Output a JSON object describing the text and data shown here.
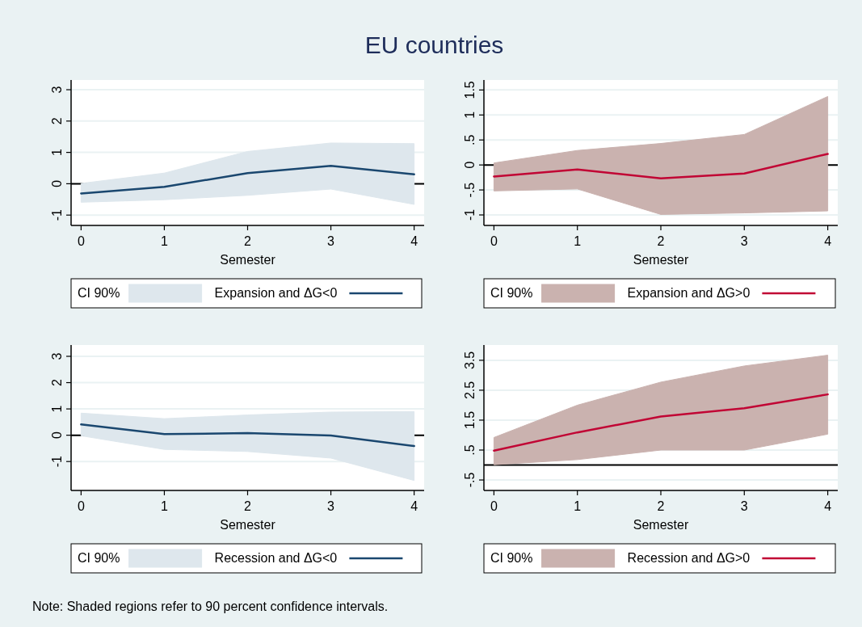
{
  "chart_data": [
    {
      "type": "line",
      "title": "EU countries",
      "xlabel": "Semester",
      "legend_title": "CI 90%",
      "x": [
        0,
        1,
        2,
        3,
        4
      ],
      "xlim": [
        -0.12,
        4.12
      ],
      "xticks": [
        0,
        1,
        2,
        3,
        4
      ],
      "ylim": [
        -1.33,
        3.31
      ],
      "yticks": [
        -1,
        0,
        1,
        2,
        3
      ],
      "grid": "y",
      "legend": "bottom",
      "ref_lines": [
        {
          "axis": "y",
          "value": 0,
          "color": "#000000"
        }
      ],
      "series": [
        {
          "name": "Expansion and ΔG<0",
          "color": "#1a476f",
          "values": [
            -0.31,
            -0.1,
            0.34,
            0.57,
            0.3
          ],
          "lower": [
            -0.59,
            -0.51,
            -0.37,
            -0.17,
            -0.66
          ],
          "upper": [
            0.01,
            0.34,
            1.03,
            1.3,
            1.28
          ]
        }
      ]
    },
    {
      "type": "line",
      "xlabel": "Semester",
      "legend_title": "CI 90%",
      "x": [
        0,
        1,
        2,
        3,
        4
      ],
      "xlim": [
        -0.12,
        4.12
      ],
      "xticks": [
        0,
        1,
        2,
        3,
        4
      ],
      "ylim": [
        -1.21,
        1.7
      ],
      "yticks": [
        {
          "value": -1,
          "label": "-1"
        },
        {
          "value": -0.5,
          "label": "-.5"
        },
        0,
        {
          "value": 0.5,
          "label": ".5"
        },
        1,
        1.5
      ],
      "grid": "y",
      "legend": "bottom",
      "ref_lines": [
        {
          "axis": "y",
          "value": 0,
          "color": "#000000"
        }
      ],
      "series": [
        {
          "name": "Expansion and ΔG>0",
          "color": "#c10534",
          "values": [
            -0.23,
            -0.09,
            -0.27,
            -0.17,
            0.22
          ],
          "lower": [
            -0.52,
            -0.48,
            -0.99,
            -0.96,
            -0.92
          ],
          "upper": [
            0.04,
            0.29,
            0.43,
            0.61,
            1.37
          ]
        }
      ]
    },
    {
      "type": "line",
      "xlabel": "Semester",
      "legend_title": "CI 90%",
      "x": [
        0,
        1,
        2,
        3,
        4
      ],
      "xlim": [
        -0.12,
        4.12
      ],
      "xticks": [
        0,
        1,
        2,
        3,
        4
      ],
      "ylim": [
        -2.1,
        3.43
      ],
      "yticks": [
        -1,
        0,
        1,
        2,
        3
      ],
      "grid": "y",
      "legend": "bottom",
      "ref_lines": [
        {
          "axis": "y",
          "value": 0,
          "color": "#000000"
        }
      ],
      "series": [
        {
          "name": "Recession and ΔG<0",
          "color": "#1a476f",
          "values": [
            0.41,
            0.04,
            0.08,
            -0.01,
            -0.41
          ],
          "lower": [
            -0.02,
            -0.54,
            -0.62,
            -0.87,
            -1.72
          ],
          "upper": [
            0.84,
            0.63,
            0.77,
            0.88,
            0.9
          ]
        }
      ]
    },
    {
      "type": "line",
      "xlabel": "Semester",
      "legend_title": "CI 90%",
      "x": [
        0,
        1,
        2,
        3,
        4
      ],
      "xlim": [
        -0.12,
        4.12
      ],
      "xticks": [
        0,
        1,
        2,
        3,
        4
      ],
      "ylim": [
        -0.85,
        4.01
      ],
      "yticks": [
        {
          "value": -0.5,
          "label": "-.5"
        },
        {
          "value": 0.5,
          "label": ".5"
        },
        1.5,
        2.5,
        3.5
      ],
      "grid": "y",
      "legend": "bottom",
      "ref_lines": [
        {
          "axis": "y",
          "value": 0,
          "color": "#000000"
        }
      ],
      "annotations": [
        "Note: Shaded regions refer to 90 percent confidence intervals."
      ],
      "series": [
        {
          "name": "Recession and ΔG>0",
          "color": "#c10534",
          "values": [
            0.48,
            1.09,
            1.62,
            1.9,
            2.36
          ],
          "lower": [
            0.01,
            0.18,
            0.5,
            0.5,
            1.03
          ],
          "upper": [
            0.92,
            2.0,
            2.77,
            3.31,
            3.67
          ]
        }
      ]
    }
  ]
}
